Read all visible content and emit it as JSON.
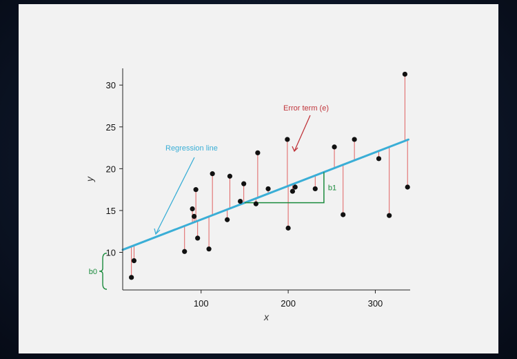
{
  "chart_data": {
    "type": "scatter",
    "title": "",
    "xlabel": "x",
    "ylabel": "y",
    "xlim": [
      10,
      340
    ],
    "ylim": [
      5.5,
      32
    ],
    "xticks": [
      100,
      200,
      300
    ],
    "yticks": [
      10,
      15,
      20,
      25,
      30
    ],
    "grid": false,
    "regression": {
      "intercept": 9.9,
      "slope": 0.0402
    },
    "points": [
      {
        "x": 20,
        "y": 7.0
      },
      {
        "x": 23,
        "y": 9.0
      },
      {
        "x": 81,
        "y": 10.1
      },
      {
        "x": 90,
        "y": 15.2
      },
      {
        "x": 92,
        "y": 14.3
      },
      {
        "x": 94,
        "y": 17.5
      },
      {
        "x": 96,
        "y": 11.7
      },
      {
        "x": 109,
        "y": 10.4
      },
      {
        "x": 113,
        "y": 19.4
      },
      {
        "x": 130,
        "y": 13.9
      },
      {
        "x": 133,
        "y": 19.1
      },
      {
        "x": 145,
        "y": 16.1
      },
      {
        "x": 149,
        "y": 18.2
      },
      {
        "x": 163,
        "y": 15.8
      },
      {
        "x": 165,
        "y": 21.9
      },
      {
        "x": 177,
        "y": 17.6
      },
      {
        "x": 199,
        "y": 23.5
      },
      {
        "x": 200,
        "y": 12.9
      },
      {
        "x": 205,
        "y": 17.3
      },
      {
        "x": 208,
        "y": 17.8
      },
      {
        "x": 231,
        "y": 17.6
      },
      {
        "x": 253,
        "y": 22.6
      },
      {
        "x": 263,
        "y": 14.5
      },
      {
        "x": 276,
        "y": 23.5
      },
      {
        "x": 304,
        "y": 21.2
      },
      {
        "x": 316,
        "y": 14.4
      },
      {
        "x": 334,
        "y": 31.3
      },
      {
        "x": 337,
        "y": 17.8
      }
    ],
    "annotations": {
      "regression_label": "Regression line",
      "error_label": "Error term (e)",
      "slope_label": "b1",
      "intercept_label": "b0"
    },
    "slope_triangle": {
      "x0": 150,
      "x1": 241
    },
    "colors": {
      "regression": "#3aaed6",
      "residual": "#e06060",
      "points": "#111111",
      "error_label": "#c0343a",
      "annotation_green": "#1a8a3c",
      "regression_label": "#3aaed6"
    }
  }
}
